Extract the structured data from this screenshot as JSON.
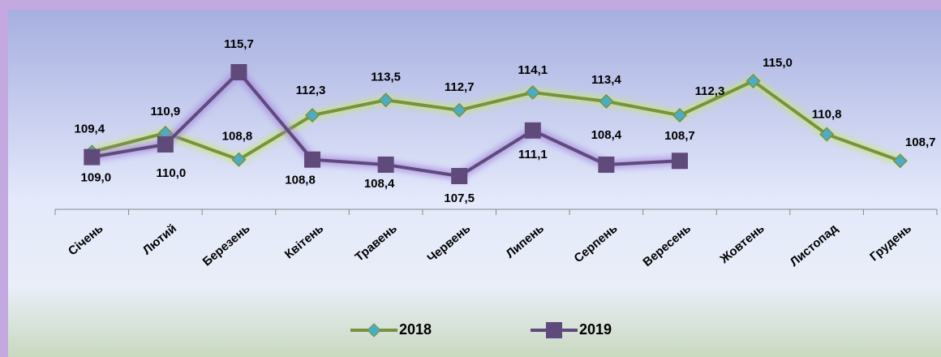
{
  "chart_data": {
    "type": "line",
    "categories": [
      "Січень",
      "Лютий",
      "Березень",
      "Квітень",
      "Травень",
      "Червень",
      "Липень",
      "Серпень",
      "Вересень",
      "Жовтень",
      "Листопад",
      "Грудень"
    ],
    "series": [
      {
        "name": "2018",
        "color": "#77933c",
        "marker_color": "#4bacc6",
        "values": [
          109.4,
          110.9,
          108.8,
          112.3,
          113.5,
          112.7,
          114.1,
          113.4,
          112.3,
          115.0,
          110.8,
          108.7
        ],
        "value_labels": [
          "109,4",
          "110,9",
          "108,8",
          "112,3",
          "113,5",
          "112,7",
          "114,1",
          "113,4",
          "112,3",
          "115,0",
          "110,8",
          "108,7"
        ]
      },
      {
        "name": "2019",
        "color": "#604a7b",
        "marker_color": "#604a7b",
        "values": [
          109.0,
          110.0,
          115.7,
          108.8,
          108.4,
          107.5,
          111.1,
          108.4,
          108.7,
          null,
          null,
          null
        ],
        "value_labels": [
          "109,0",
          "110,0",
          "115,7",
          "108,8",
          "108,4",
          "107,5",
          "111,1",
          "108,4",
          "108,7",
          null,
          null,
          null
        ]
      }
    ],
    "legend": "bottom"
  }
}
